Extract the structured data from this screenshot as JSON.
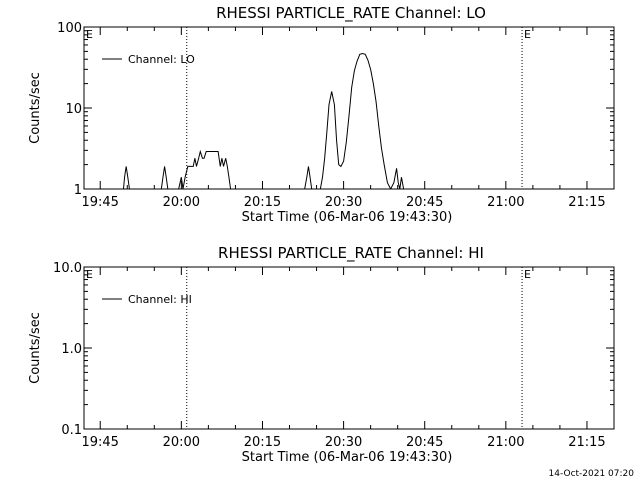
{
  "chart_data": [
    {
      "type": "line",
      "title": "RHESSI PARTICLE_RATE Channel: LO",
      "xlabel": "Start Time (06-Mar-06 19:43:30)",
      "ylabel": "Counts/sec",
      "yscale": "log",
      "ylim": [
        1,
        100
      ],
      "xlim_minutes": [
        -1.5,
        96.5
      ],
      "ytick_values": [
        1,
        10,
        100
      ],
      "ytick_labels": [
        "1",
        "10",
        "100"
      ],
      "xtick_values": [
        1.5,
        16.5,
        31.5,
        46.5,
        61.5,
        76.5,
        91.5
      ],
      "xtick_labels": [
        "19:45",
        "20:00",
        "20:15",
        "20:30",
        "20:45",
        "21:00",
        "21:15"
      ],
      "vlines": [
        17.5,
        79.5,
        96.5
      ],
      "event_marks": [
        {
          "label": "E",
          "x": -1.5
        },
        {
          "label": "E",
          "x": 79.5
        }
      ],
      "legend": {
        "entries": [
          "Channel: LO"
        ],
        "placement": "top-left"
      },
      "series": [
        {
          "name": "Channel: LO",
          "x": [
            -1.5,
            5.8,
            6.0,
            6.3,
            6.6,
            6.9,
            7.2,
            12.8,
            13.1,
            13.4,
            13.7,
            14.0,
            14.3,
            15.0,
            16.0,
            16.5,
            16.8,
            17.2,
            17.7,
            18.0,
            18.3,
            18.7,
            19.0,
            19.3,
            19.7,
            20.0,
            20.4,
            20.7,
            21.1,
            21.6,
            22.5,
            23.3,
            23.7,
            24.0,
            24.3,
            24.7,
            25.0,
            25.3,
            25.6,
            26.3,
            33.5,
            39.3,
            39.7,
            40.0,
            40.3,
            40.6,
            42.2,
            42.6,
            43.0,
            43.4,
            43.8,
            44.3,
            44.8,
            45.2,
            45.6,
            46.0,
            46.5,
            47.0,
            47.5,
            48.0,
            48.5,
            49.0,
            49.5,
            50.0,
            50.5,
            51.0,
            51.5,
            52.0,
            52.5,
            53.0,
            53.5,
            54.0,
            54.6,
            55.2,
            55.8,
            56.3,
            56.6,
            56.9,
            57.2,
            57.6,
            61.0,
            80.0,
            96.5
          ],
          "y": [
            1.0,
            1.0,
            1.4,
            1.9,
            1.4,
            1.0,
            1.0,
            1.0,
            1.4,
            1.9,
            1.4,
            1.0,
            1.0,
            1.0,
            1.0,
            1.4,
            1.0,
            1.4,
            1.9,
            1.9,
            1.9,
            1.9,
            2.4,
            1.9,
            2.4,
            2.9,
            2.4,
            2.4,
            2.9,
            2.9,
            2.9,
            2.9,
            1.9,
            2.4,
            1.9,
            2.4,
            1.9,
            1.4,
            1.0,
            1.0,
            1.0,
            1.0,
            1.4,
            1.9,
            1.4,
            1.0,
            1.0,
            1.4,
            2.4,
            5.0,
            11.0,
            16.0,
            11.0,
            4.0,
            2.0,
            1.9,
            2.2,
            3.8,
            8.0,
            18.0,
            29.0,
            38.0,
            46.0,
            47.0,
            46.0,
            39.0,
            30.0,
            20.0,
            12.0,
            6.0,
            3.2,
            2.0,
            1.2,
            1.0,
            1.2,
            1.8,
            1.2,
            1.0,
            1.4,
            1.0,
            1.0,
            1.0,
            1.0
          ]
        }
      ]
    },
    {
      "type": "line",
      "title": "RHESSI PARTICLE_RATE Channel: HI",
      "xlabel": "Start Time (06-Mar-06 19:43:30)",
      "ylabel": "Counts/sec",
      "yscale": "log",
      "ylim": [
        0.1,
        10.0
      ],
      "xlim_minutes": [
        -1.5,
        96.5
      ],
      "ytick_values": [
        0.1,
        1.0,
        10.0
      ],
      "ytick_labels": [
        "0.1",
        "1.0",
        "10.0"
      ],
      "xtick_values": [
        1.5,
        16.5,
        31.5,
        46.5,
        61.5,
        76.5,
        91.5
      ],
      "xtick_labels": [
        "19:45",
        "20:00",
        "20:15",
        "20:30",
        "20:45",
        "21:00",
        "21:15"
      ],
      "vlines": [
        17.5,
        79.5,
        96.5
      ],
      "event_marks": [
        {
          "label": "E",
          "x": -1.5
        },
        {
          "label": "E",
          "x": 79.5
        }
      ],
      "legend": {
        "entries": [
          "Channel: HI"
        ],
        "placement": "top-left"
      },
      "series": [
        {
          "name": "Channel: HI",
          "x": [],
          "y": []
        }
      ]
    }
  ],
  "footer": {
    "timestamp": "14-Oct-2021 07:20"
  }
}
